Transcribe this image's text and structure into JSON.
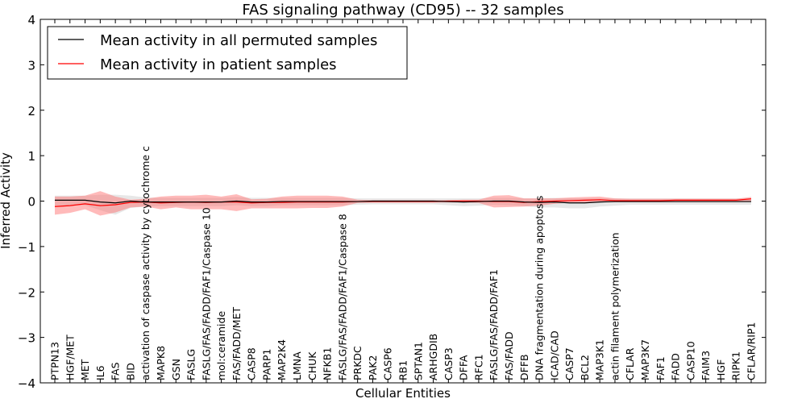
{
  "chart_data": {
    "type": "line",
    "title": "FAS signaling pathway (CD95) -- 32 samples",
    "xlabel": "Cellular Entities",
    "ylabel": "Inferred Activity",
    "ylim": [
      -4,
      4
    ],
    "yticks": [
      -4,
      -3,
      -2,
      -1,
      0,
      1,
      2,
      3,
      4
    ],
    "ytick_labels": [
      "−4",
      "−3",
      "−2",
      "−1",
      "0",
      "1",
      "2",
      "3",
      "4"
    ],
    "grid": false,
    "legend_position": "top-left",
    "categories": [
      "PTPN13",
      "HGF/MET",
      "MET",
      "IL6",
      "FAS",
      "BID",
      "activation of caspase activity by cytochrome c",
      "MAPK8",
      "GSN",
      "FASLG",
      "FASLG/FAS/FADD/FAF1/Caspase 10",
      "mol:ceramide",
      "FAS/FADD/MET",
      "CASP8",
      "PARP1",
      "MAP2K4",
      "LMNA",
      "CHUK",
      "NFKB1",
      "FASLG/FAS/FADD/FAF1/Caspase 8",
      "PRKDC",
      "PAK2",
      "CASP6",
      "RB1",
      "SPTAN1",
      "ARHGDIB",
      "CASP3",
      "DFFA",
      "RFC1",
      "FASLG/FAS/FADD/FAF1",
      "FAS/FADD",
      "DFFB",
      "DNA fragmentation during apoptosis",
      "ICAD/CAD",
      "CASP7",
      "BCL2",
      "MAP3K1",
      "actin filament polymerization",
      "CFLAR",
      "MAP3K7",
      "FAF1",
      "FADD",
      "CASP10",
      "FAIM3",
      "HGF",
      "RIPK1",
      "CFLAR/RIP1"
    ],
    "series": [
      {
        "name": "Mean activity in all permuted samples",
        "color": "#000000",
        "band_color": "#bbbbbb",
        "values": [
          0.02,
          0.02,
          0.02,
          -0.02,
          -0.04,
          0.0,
          -0.02,
          -0.02,
          -0.02,
          -0.02,
          -0.02,
          -0.02,
          0.0,
          -0.02,
          -0.02,
          -0.01,
          -0.01,
          -0.01,
          -0.01,
          -0.01,
          -0.01,
          0.0,
          0.0,
          0.0,
          0.0,
          0.0,
          -0.01,
          -0.02,
          -0.01,
          0.0,
          0.0,
          -0.02,
          -0.03,
          -0.02,
          -0.04,
          -0.04,
          -0.02,
          -0.01,
          -0.01,
          -0.01,
          -0.01,
          -0.01,
          -0.01,
          -0.01,
          -0.01,
          -0.01,
          -0.01
        ],
        "lower": [
          -0.1,
          -0.09,
          -0.09,
          -0.2,
          -0.3,
          -0.15,
          -0.12,
          -0.11,
          -0.11,
          -0.11,
          -0.11,
          -0.11,
          -0.09,
          -0.11,
          -0.11,
          -0.09,
          -0.09,
          -0.09,
          -0.09,
          -0.09,
          -0.08,
          -0.07,
          -0.07,
          -0.07,
          -0.07,
          -0.07,
          -0.09,
          -0.11,
          -0.1,
          -0.08,
          -0.09,
          -0.11,
          -0.14,
          -0.14,
          -0.16,
          -0.16,
          -0.12,
          -0.1,
          -0.08,
          -0.08,
          -0.08,
          -0.08,
          -0.08,
          -0.08,
          -0.08,
          -0.08,
          -0.08
        ],
        "upper": [
          0.12,
          0.12,
          0.12,
          0.14,
          0.14,
          0.12,
          0.08,
          0.07,
          0.07,
          0.07,
          0.07,
          0.07,
          0.09,
          0.07,
          0.07,
          0.07,
          0.07,
          0.07,
          0.07,
          0.07,
          0.06,
          0.06,
          0.06,
          0.06,
          0.06,
          0.06,
          0.06,
          0.06,
          0.06,
          0.07,
          0.07,
          0.06,
          0.06,
          0.07,
          0.06,
          0.06,
          0.06,
          0.06,
          0.06,
          0.06,
          0.06,
          0.06,
          0.06,
          0.06,
          0.06,
          0.06,
          0.06
        ]
      },
      {
        "name": "Mean activity in patient samples",
        "color": "#ff0000",
        "band_color": "#ff6666",
        "values": [
          -0.12,
          -0.1,
          -0.06,
          -0.1,
          -0.08,
          -0.03,
          -0.02,
          -0.04,
          -0.03,
          -0.02,
          -0.03,
          -0.02,
          -0.02,
          -0.04,
          -0.03,
          -0.03,
          -0.02,
          -0.02,
          -0.02,
          -0.02,
          -0.01,
          -0.01,
          -0.01,
          -0.01,
          -0.01,
          -0.01,
          0.0,
          0.0,
          0.0,
          -0.01,
          -0.01,
          -0.03,
          -0.01,
          0.0,
          0.01,
          0.02,
          0.03,
          0.01,
          0.01,
          0.01,
          0.01,
          0.02,
          0.02,
          0.02,
          0.02,
          0.02,
          0.05
        ],
        "lower": [
          -0.3,
          -0.26,
          -0.18,
          -0.32,
          -0.25,
          -0.14,
          -0.12,
          -0.18,
          -0.14,
          -0.18,
          -0.18,
          -0.18,
          -0.22,
          -0.16,
          -0.16,
          -0.16,
          -0.16,
          -0.15,
          -0.15,
          -0.12,
          -0.04,
          -0.03,
          -0.03,
          -0.03,
          -0.03,
          -0.03,
          -0.03,
          -0.03,
          -0.04,
          -0.14,
          -0.13,
          -0.12,
          -0.1,
          -0.06,
          -0.03,
          -0.03,
          -0.02,
          -0.02,
          -0.02,
          -0.02,
          -0.02,
          -0.02,
          -0.02,
          -0.02,
          -0.02,
          -0.02,
          -0.01
        ],
        "upper": [
          0.1,
          0.1,
          0.12,
          0.22,
          0.1,
          0.03,
          0.05,
          0.1,
          0.12,
          0.12,
          0.14,
          0.1,
          0.15,
          0.04,
          0.05,
          0.1,
          0.12,
          0.12,
          0.12,
          0.1,
          0.03,
          0.02,
          0.02,
          0.02,
          0.02,
          0.02,
          0.02,
          0.03,
          0.03,
          0.12,
          0.13,
          0.06,
          0.06,
          0.06,
          0.08,
          0.09,
          0.1,
          0.06,
          0.05,
          0.05,
          0.05,
          0.05,
          0.05,
          0.05,
          0.05,
          0.05,
          0.09
        ]
      }
    ]
  }
}
